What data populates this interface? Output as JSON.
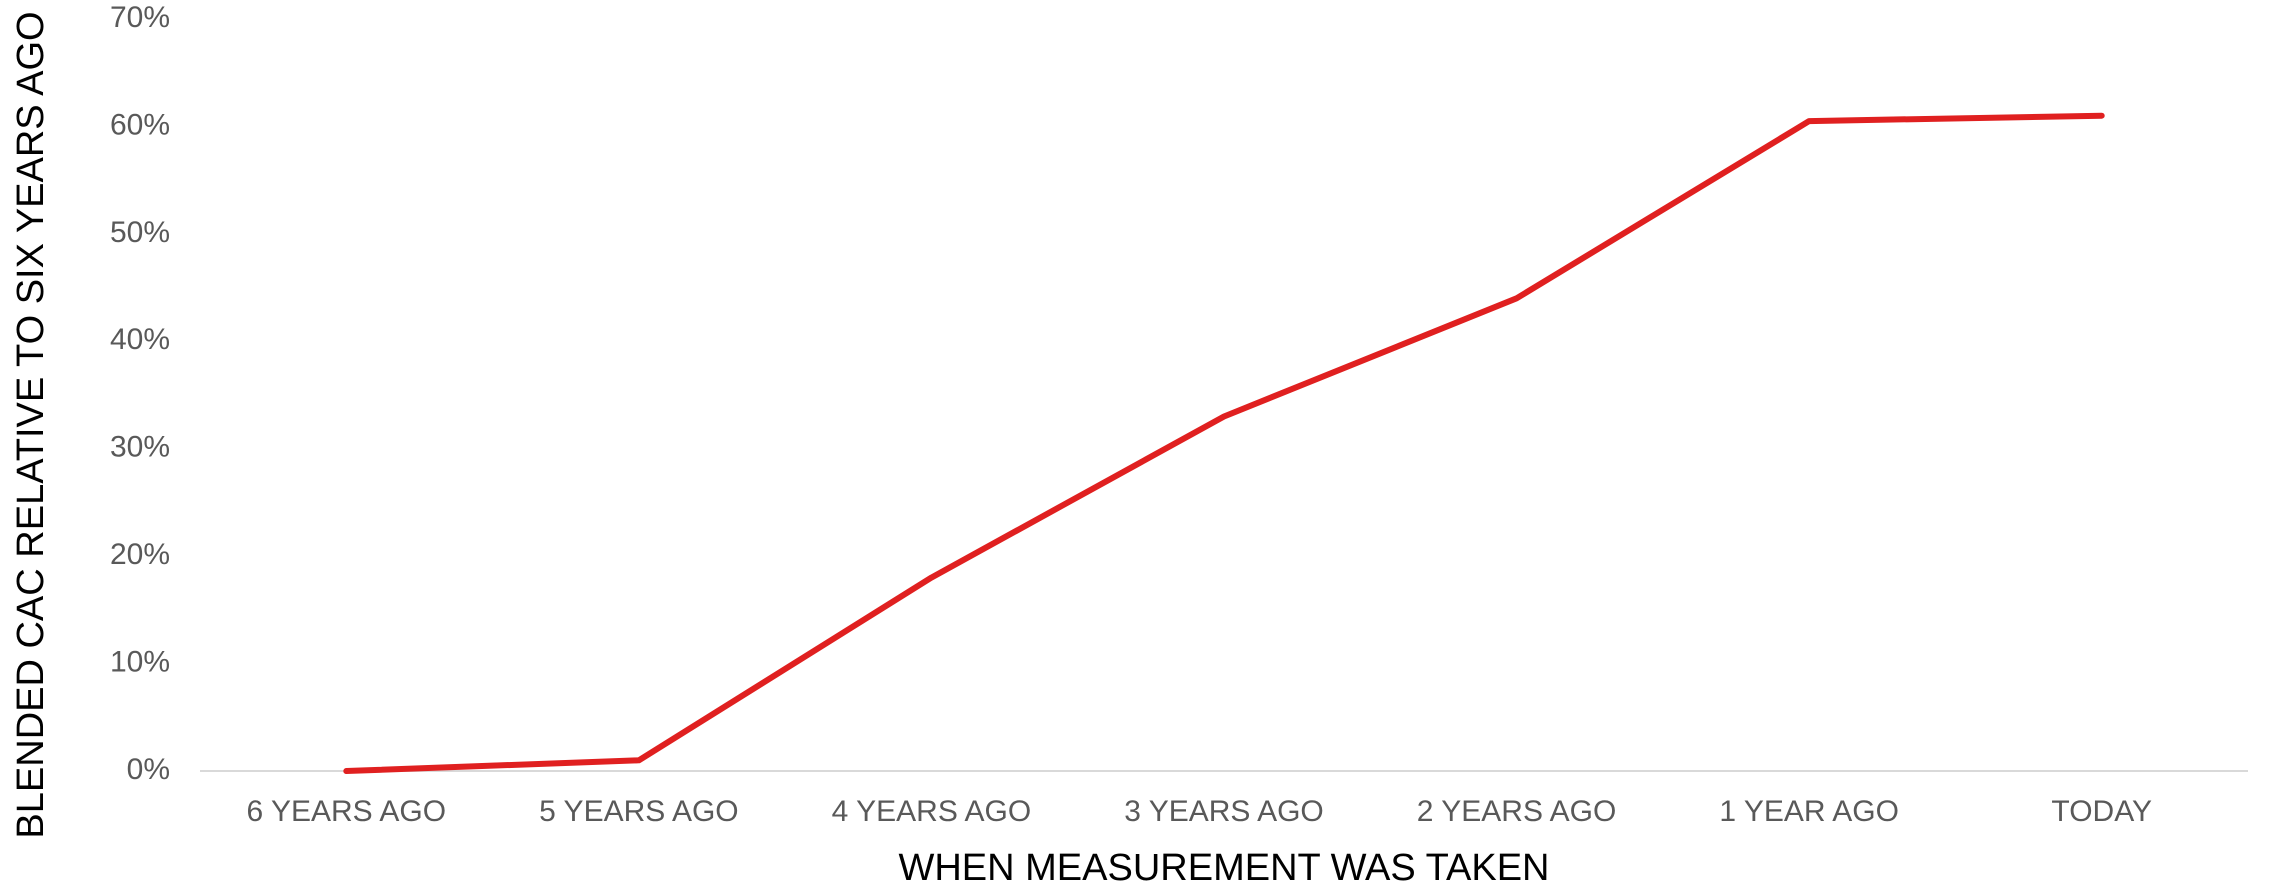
{
  "chart_data": {
    "type": "line",
    "title": "",
    "xlabel": "WHEN MEASUREMENT WAS TAKEN",
    "ylabel": "BLENDED CAC RELATIVE TO SIX YEARS AGO",
    "categories": [
      "6 YEARS AGO",
      "5 YEARS AGO",
      "4 YEARS AGO",
      "3 YEARS AGO",
      "2 YEARS AGO",
      "1 YEAR AGO",
      "TODAY"
    ],
    "series": [
      {
        "values": [
          0,
          1,
          18,
          33,
          44,
          60.5,
          61
        ],
        "color": "#E02020"
      }
    ],
    "ylim": [
      0,
      70
    ],
    "yticks": [
      0,
      10,
      20,
      30,
      40,
      50,
      60,
      70
    ],
    "ytick_labels": [
      "0%",
      "10%",
      "20%",
      "30%",
      "40%",
      "50%",
      "60%",
      "70%"
    ],
    "grid": false,
    "legend": "none"
  }
}
